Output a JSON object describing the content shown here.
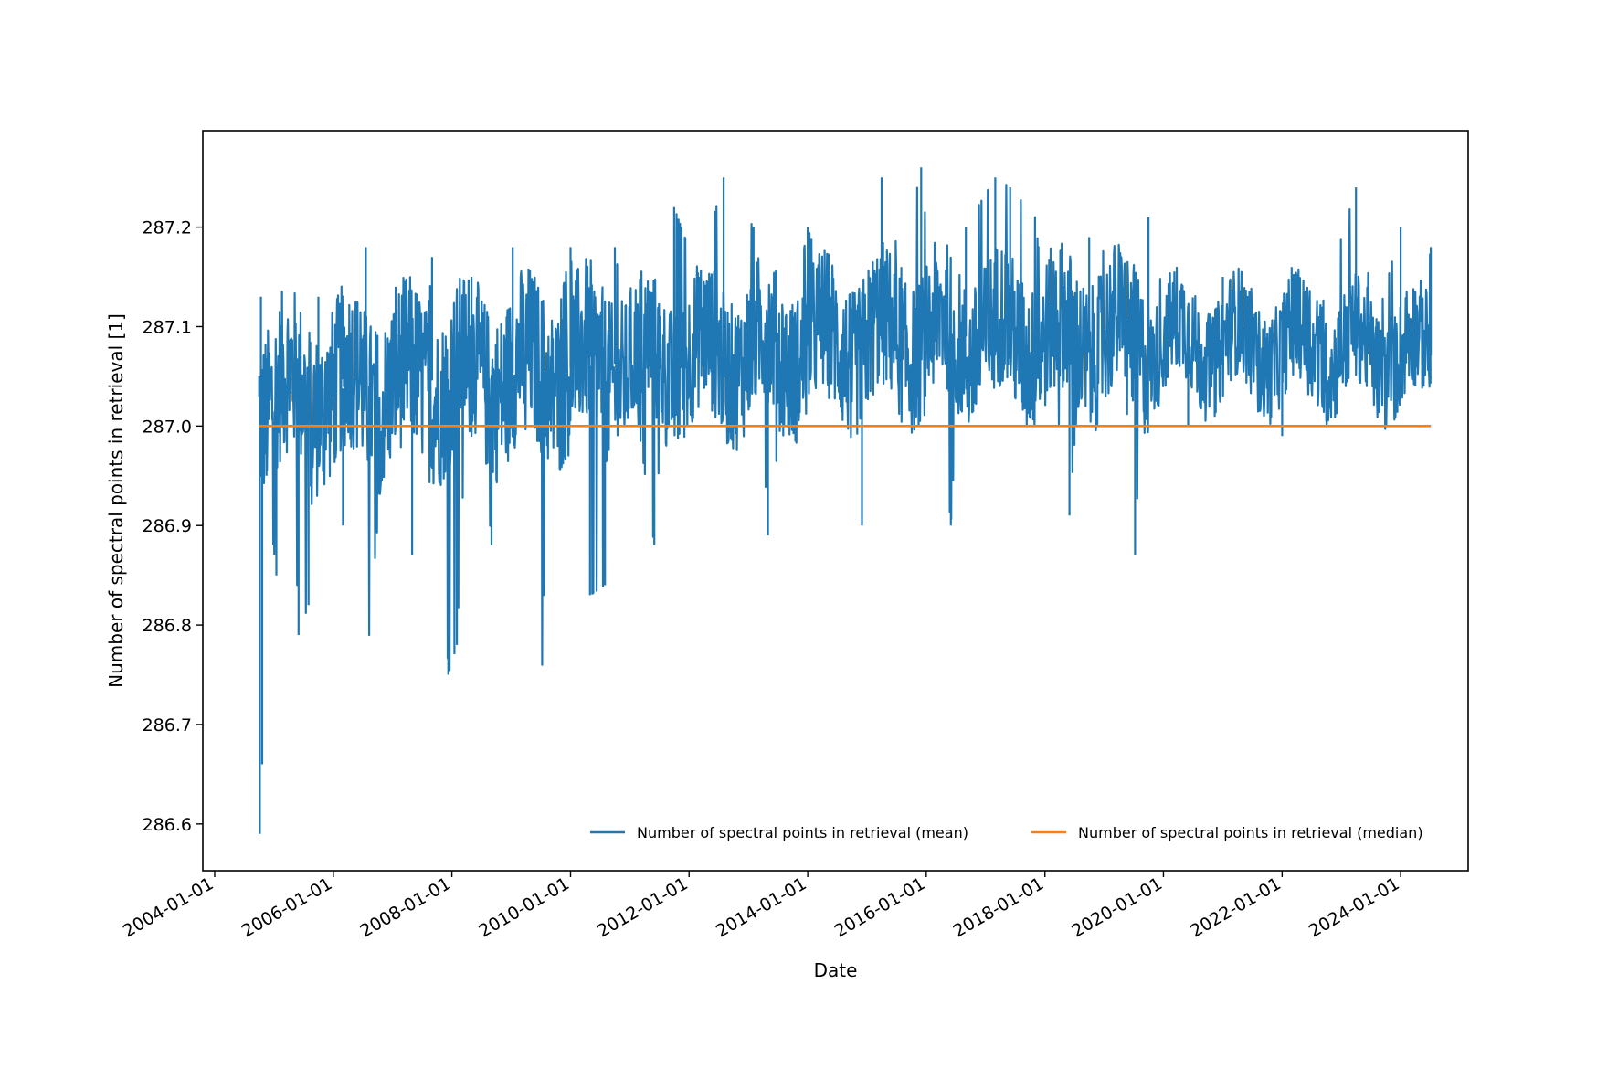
{
  "chart_data": {
    "type": "line",
    "title": "",
    "xlabel": "Date",
    "ylabel": "Number of spectral points in retrieval [1]",
    "x_range": [
      "2003-10-20",
      "2025-02-20"
    ],
    "ylim": [
      286.553,
      287.297
    ],
    "x_ticks": [
      "2004-01-01",
      "2006-01-01",
      "2008-01-01",
      "2010-01-01",
      "2012-01-01",
      "2014-01-01",
      "2016-01-01",
      "2018-01-01",
      "2020-01-01",
      "2022-01-01",
      "2024-01-01"
    ],
    "y_ticks": [
      286.6,
      286.7,
      286.8,
      286.9,
      287.0,
      287.1,
      287.2
    ],
    "y_tick_labels": [
      "286.6",
      "286.7",
      "286.8",
      "286.9",
      "287.0",
      "287.1",
      "287.2"
    ],
    "legend": {
      "placement": "lower-right",
      "columns": 2
    },
    "series": [
      {
        "name": "Number of spectral points in retrieval (mean)",
        "color": "#1f77b4",
        "x_start": "2004-10-01",
        "x_end": "2024-07-05",
        "sample_points": [
          [
            "2004-10-01",
            287.05
          ],
          [
            "2004-10-05",
            286.59
          ],
          [
            "2004-10-12",
            287.13
          ],
          [
            "2004-10-20",
            286.66
          ],
          [
            "2004-11-15",
            286.95
          ],
          [
            "2005-01-15",
            286.85
          ],
          [
            "2005-04-10",
            287.08
          ],
          [
            "2005-06-01",
            286.79
          ],
          [
            "2005-08-01",
            286.82
          ],
          [
            "2005-10-01",
            287.13
          ],
          [
            "2006-03-01",
            286.9
          ],
          [
            "2006-07-20",
            287.18
          ],
          [
            "2006-08-10",
            286.79
          ],
          [
            "2007-01-20",
            287.14
          ],
          [
            "2007-05-01",
            286.87
          ],
          [
            "2007-09-01",
            287.17
          ],
          [
            "2007-12-10",
            286.75
          ],
          [
            "2008-02-01",
            286.78
          ],
          [
            "2008-05-01",
            287.15
          ],
          [
            "2008-09-01",
            286.88
          ],
          [
            "2009-01-10",
            287.18
          ],
          [
            "2009-07-10",
            286.76
          ],
          [
            "2009-09-01",
            287.07
          ],
          [
            "2010-01-01",
            287.18
          ],
          [
            "2010-05-01",
            286.83
          ],
          [
            "2010-08-01",
            286.84
          ],
          [
            "2010-10-01",
            287.18
          ],
          [
            "2011-06-01",
            286.88
          ],
          [
            "2011-10-01",
            287.22
          ],
          [
            "2012-03-01",
            287.15
          ],
          [
            "2012-08-01",
            287.25
          ],
          [
            "2013-02-01",
            287.2
          ],
          [
            "2013-05-01",
            286.89
          ],
          [
            "2013-10-01",
            287.11
          ],
          [
            "2014-01-01",
            287.2
          ],
          [
            "2014-07-01",
            287.1
          ],
          [
            "2014-12-01",
            286.9
          ],
          [
            "2015-04-01",
            287.25
          ],
          [
            "2015-08-01",
            287.16
          ],
          [
            "2015-12-01",
            287.26
          ],
          [
            "2016-06-01",
            286.9
          ],
          [
            "2016-09-01",
            287.2
          ],
          [
            "2017-03-01",
            287.25
          ],
          [
            "2017-06-01",
            287.24
          ],
          [
            "2017-11-01",
            287.21
          ],
          [
            "2018-06-01",
            286.91
          ],
          [
            "2018-10-01",
            287.19
          ],
          [
            "2019-04-01",
            287.16
          ],
          [
            "2019-07-10",
            286.87
          ],
          [
            "2019-10-01",
            287.21
          ],
          [
            "2020-06-01",
            287.0
          ],
          [
            "2021-01-01",
            287.15
          ],
          [
            "2021-06-01",
            287.13
          ],
          [
            "2022-01-01",
            286.99
          ],
          [
            "2022-03-01",
            287.16
          ],
          [
            "2022-09-01",
            287.12
          ],
          [
            "2023-04-01",
            287.24
          ],
          [
            "2023-08-01",
            287.1
          ],
          [
            "2024-01-01",
            287.2
          ],
          [
            "2024-04-01",
            287.04
          ],
          [
            "2024-07-05",
            287.18
          ]
        ]
      },
      {
        "name": "Number of spectral points in retrieval (median)",
        "color": "#ff7f0e",
        "x_start": "2004-10-01",
        "x_end": "2024-07-05",
        "constant_value": 287.0
      }
    ]
  }
}
